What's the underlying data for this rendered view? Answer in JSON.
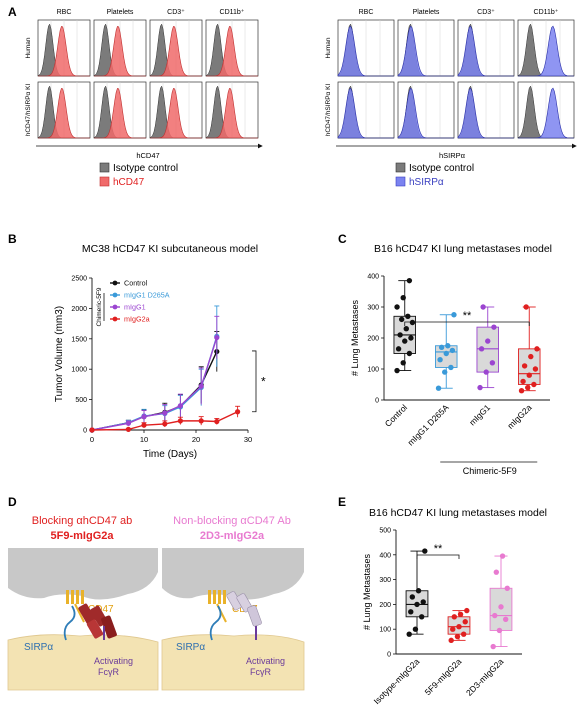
{
  "panels": {
    "A": {
      "letter": "A",
      "columns": [
        "RBC",
        "Platelets",
        "CD3⁺",
        "CD11b⁺"
      ],
      "rows": [
        "Human",
        "hCD47/hSIRPα KI"
      ],
      "left": {
        "xlabel": "hCD47",
        "legend": [
          {
            "label": "Isotype control",
            "color": "#7b7b7b"
          },
          {
            "label": "hCD47",
            "color": "#f06a6a"
          }
        ]
      },
      "right": {
        "xlabel": "hSIRPα",
        "legend": [
          {
            "label": "Isotype control",
            "color": "#7b7b7b"
          },
          {
            "label": "hSIRPα",
            "color": "#7b83f0"
          }
        ]
      }
    },
    "B": {
      "letter": "B",
      "title": "MC38 hCD47 KI subcutaneous model",
      "bracket_label": "Chimeric-5F9",
      "significance": "*"
    },
    "C": {
      "letter": "C",
      "title": "B16 hCD47 KI lung metastases model",
      "bracket_label": "Chimeric-5F9",
      "significance": "**"
    },
    "D": {
      "letter": "D",
      "left_title": [
        "Blocking αhCD47 ab",
        "5F9-mIgG2a"
      ],
      "right_title": [
        "Non-blocking αCD47 Ab",
        "2D3-mIgG2a"
      ],
      "labels": {
        "cd47": "CD47",
        "sirpa": "SIRPα",
        "activating": "Activating",
        "fcgr": "FcγR"
      }
    },
    "E": {
      "letter": "E",
      "title": "B16 hCD47 KI  lung metastases model",
      "significance": "**"
    }
  },
  "chart_data": [
    {
      "id": "B",
      "type": "line",
      "title": "MC38 hCD47 KI subcutaneous model",
      "xlabel": "Time (Days)",
      "ylabel": "Tumor Volume (mm3)",
      "xlim": [
        0,
        30
      ],
      "ylim": [
        0,
        2500
      ],
      "xticks": [
        0,
        10,
        20,
        30
      ],
      "yticks": [
        0,
        500,
        1000,
        1500,
        2000,
        2500
      ],
      "legend_position": "top-left",
      "series": [
        {
          "name": "Control",
          "color": "#111111",
          "x": [
            0,
            7,
            10,
            14,
            17,
            21,
            24
          ],
          "y": [
            0,
            120,
            220,
            290,
            390,
            740,
            1290
          ],
          "err": [
            0,
            40,
            110,
            150,
            190,
            300,
            330
          ]
        },
        {
          "name": "mIgG1 D265A",
          "color": "#3a9ad9",
          "x": [
            0,
            7,
            10,
            14,
            17,
            21,
            24
          ],
          "y": [
            0,
            120,
            230,
            270,
            380,
            700,
            1540
          ],
          "err": [
            0,
            40,
            110,
            130,
            190,
            300,
            500
          ]
        },
        {
          "name": "mIgG1",
          "color": "#9b45d0",
          "x": [
            0,
            7,
            10,
            14,
            17,
            21,
            24
          ],
          "y": [
            0,
            110,
            220,
            280,
            400,
            720,
            1520
          ],
          "err": [
            0,
            40,
            100,
            140,
            190,
            300,
            350
          ]
        },
        {
          "name": "mIgG2a",
          "color": "#e02020",
          "x": [
            0,
            7,
            10,
            14,
            17,
            21,
            24,
            28
          ],
          "y": [
            0,
            10,
            80,
            100,
            150,
            150,
            140,
            300
          ],
          "err": [
            0,
            10,
            40,
            50,
            60,
            70,
            50,
            90
          ]
        }
      ]
    },
    {
      "id": "C",
      "type": "box",
      "title": "B16 hCD47 KI lung metastases model",
      "ylabel": "# Lung Metastases",
      "ylim": [
        0,
        400
      ],
      "yticks": [
        0,
        100,
        200,
        300,
        400
      ],
      "categories": [
        "Control",
        "mIgG1 D265A",
        "mIgG1",
        "mIgG2a"
      ],
      "groups": [
        {
          "color": "#111111",
          "whisker": [
            95,
            385
          ],
          "q1": 150,
          "median": 210,
          "q3": 270,
          "points": [
            95,
            120,
            150,
            165,
            190,
            200,
            210,
            230,
            250,
            260,
            270,
            300,
            330,
            385
          ]
        },
        {
          "color": "#3a9ad9",
          "whisker": [
            38,
            275
          ],
          "q1": 105,
          "median": 155,
          "q3": 175,
          "points": [
            38,
            90,
            105,
            130,
            150,
            160,
            170,
            175,
            275
          ]
        },
        {
          "color": "#9b45d0",
          "whisker": [
            40,
            300
          ],
          "q1": 90,
          "median": 165,
          "q3": 235,
          "points": [
            40,
            90,
            120,
            165,
            190,
            235,
            300
          ]
        },
        {
          "color": "#e02020",
          "whisker": [
            30,
            300
          ],
          "q1": 50,
          "median": 85,
          "q3": 165,
          "points": [
            30,
            40,
            50,
            60,
            80,
            100,
            110,
            140,
            165,
            300
          ]
        }
      ]
    },
    {
      "id": "E",
      "type": "box",
      "title": "B16 hCD47 KI  lung metastases model",
      "ylabel": "# Lung Metastases",
      "ylim": [
        0,
        500
      ],
      "yticks": [
        0,
        100,
        200,
        300,
        400,
        500
      ],
      "categories": [
        "Isotype-mIgG2a",
        "5F9-mIgG2a",
        "2D3-mIgG2a"
      ],
      "groups": [
        {
          "color": "#111111",
          "whisker": [
            80,
            415
          ],
          "q1": 150,
          "median": 200,
          "q3": 255,
          "points": [
            80,
            100,
            150,
            170,
            200,
            210,
            230,
            255,
            415
          ]
        },
        {
          "color": "#e02020",
          "whisker": [
            55,
            175
          ],
          "q1": 80,
          "median": 110,
          "q3": 150,
          "points": [
            55,
            70,
            80,
            100,
            110,
            130,
            150,
            160,
            175
          ]
        },
        {
          "color": "#e87ad0",
          "whisker": [
            30,
            395
          ],
          "q1": 95,
          "median": 155,
          "q3": 265,
          "points": [
            30,
            95,
            140,
            155,
            190,
            265,
            330,
            395
          ]
        }
      ]
    }
  ]
}
